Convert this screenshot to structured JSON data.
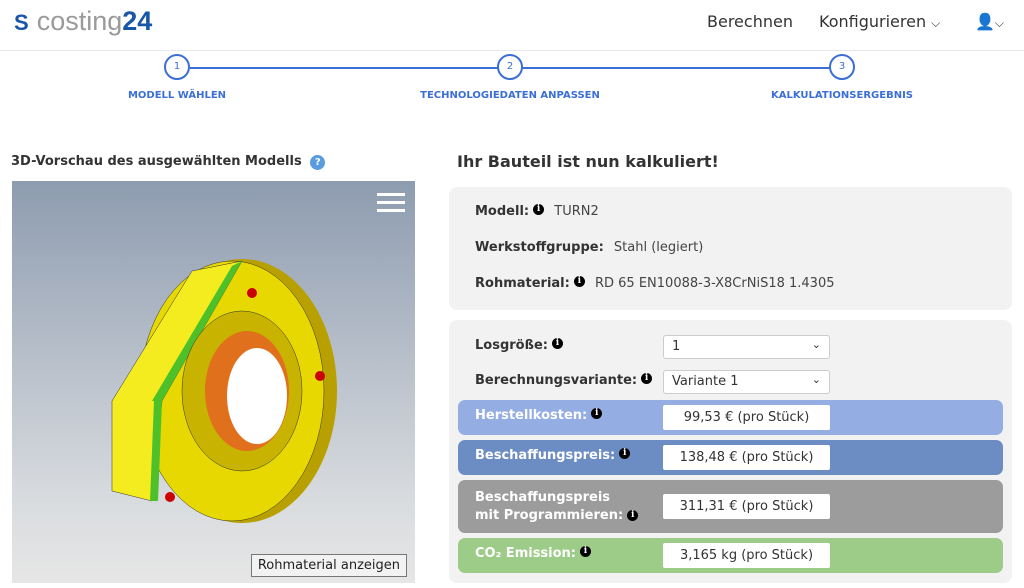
{
  "header": {
    "logo_text": "costing",
    "logo_number": "24",
    "nav": [
      {
        "label": "Berechnen"
      },
      {
        "label": "Konfigurieren"
      }
    ]
  },
  "stepper": [
    {
      "number": "1",
      "label": "MODELL WÄHLEN"
    },
    {
      "number": "2",
      "label": "TECHNOLOGIEDATEN ANPASSEN"
    },
    {
      "number": "3",
      "label": "KALKULATIONSERGEBNIS"
    }
  ],
  "preview": {
    "title": "3D-Vorschau des ausgewählten Modells",
    "button": "Rohmaterial anzeigen"
  },
  "result": {
    "title": "Ihr Bauteil ist nun kalkuliert!",
    "info": [
      {
        "label": "Modell:",
        "value": "TURN2"
      },
      {
        "label": "Werkstoffgruppe:",
        "value": "Stahl (legiert)"
      },
      {
        "label": "Rohmaterial:",
        "value": "RD 65 EN10088-3-X8CrNiS18 1.4305"
      }
    ],
    "inputs": [
      {
        "label": "Losgröße:",
        "value": "1"
      },
      {
        "label": "Berechnungsvariante:",
        "value": "Variante 1"
      }
    ],
    "costs": [
      {
        "label": "Herstellkosten:",
        "value": "99,53 € (pro Stück)",
        "color": "#94aee4"
      },
      {
        "label": "Beschaffungspreis:",
        "value": "138,48 € (pro Stück)",
        "color": "#6c8cc4"
      },
      {
        "label_line1": "Beschaffungspreis",
        "label_line2": "mit Programmieren:",
        "value": "311,31 € (pro Stück)",
        "color": "#9c9c9c"
      },
      {
        "label": "CO₂ Emission:",
        "value": "3,165 kg (pro Stück)",
        "color": "#9ccc88"
      }
    ]
  }
}
